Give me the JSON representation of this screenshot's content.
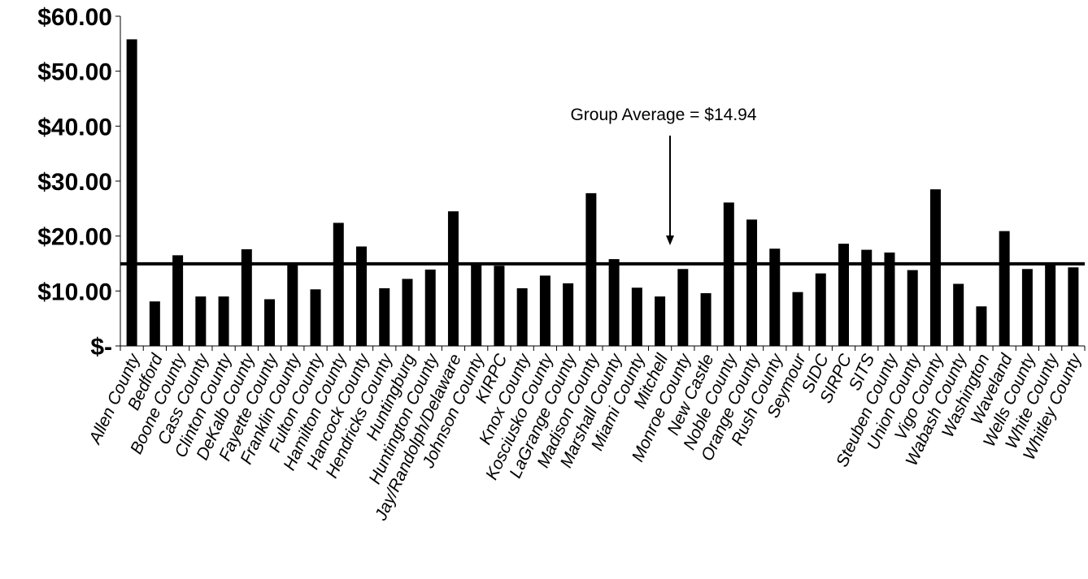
{
  "chart_data": {
    "type": "bar",
    "categories": [
      "Allen County",
      "Bedford",
      "Boone County",
      "Cass County",
      "Clinton County",
      "DeKalb County",
      "Fayette County",
      "Franklin County",
      "Fulton County",
      "Hamilton County",
      "Hancock County",
      "Hendricks County",
      "Huntingburg",
      "Huntington County",
      "Jay/Randolph/Delaware",
      "Johnson County",
      "KIRPC",
      "Knox County",
      "Kosciusko County",
      "LaGrange County",
      "Madison County",
      "Marshall County",
      "Miami County",
      "Mitchell",
      "Monroe County",
      "New Castle",
      "Noble County",
      "Orange County",
      "Rush County",
      "Seymour",
      "SIDC",
      "SIRPC",
      "SITS",
      "Steuben County",
      "Union County",
      "Vigo County",
      "Wabash County",
      "Washington",
      "Waveland",
      "Wells County",
      "White County",
      "Whitley County"
    ],
    "values": [
      55.8,
      8.1,
      16.5,
      9.0,
      9.0,
      17.6,
      8.5,
      15.1,
      10.3,
      22.4,
      18.1,
      10.5,
      12.2,
      13.9,
      24.5,
      15.0,
      14.6,
      10.5,
      12.8,
      11.4,
      27.8,
      15.8,
      10.6,
      9.0,
      14.0,
      9.6,
      26.1,
      23.0,
      17.7,
      9.8,
      13.2,
      18.6,
      17.5,
      17.0,
      13.8,
      28.5,
      11.3,
      7.2,
      20.9,
      14.0,
      15.0,
      14.3
    ],
    "ylim": [
      0,
      60
    ],
    "yticks": [
      {
        "value": 0,
        "label": "$-"
      },
      {
        "value": 10,
        "label": "$10.00"
      },
      {
        "value": 20,
        "label": "$20.00"
      },
      {
        "value": 30,
        "label": "$30.00"
      },
      {
        "value": 40,
        "label": "$40.00"
      },
      {
        "value": 50,
        "label": "$50.00"
      },
      {
        "value": 60,
        "label": "$60.00"
      }
    ],
    "average": 14.94,
    "annotation": "Group Average = $14.94",
    "title": "",
    "xlabel": "",
    "ylabel": "",
    "grid": false,
    "colors": {
      "bar": "#000000",
      "line": "#000000"
    }
  }
}
